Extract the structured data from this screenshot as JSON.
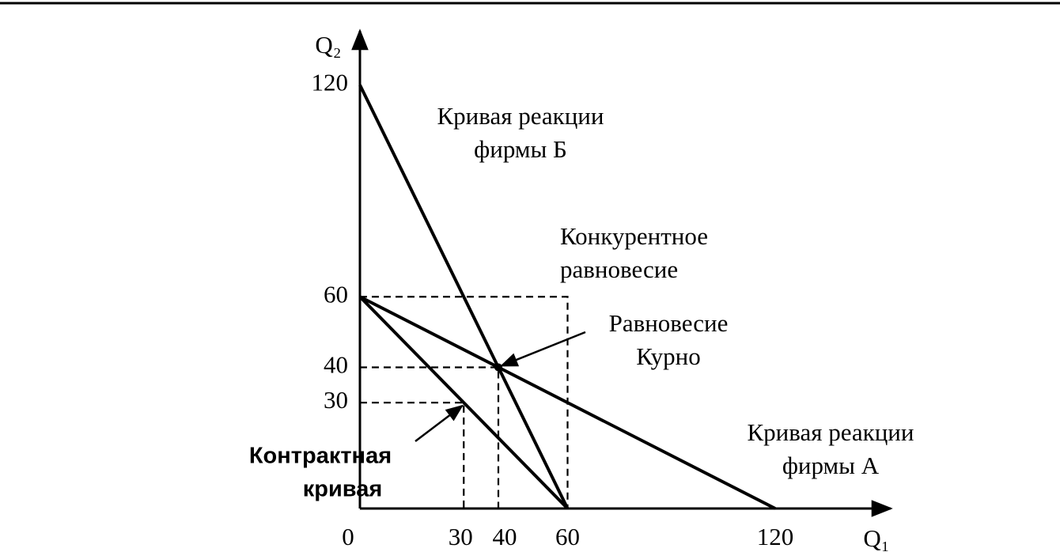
{
  "chart_data": {
    "type": "line",
    "xlabel": "Q₁",
    "ylabel": "Q₂",
    "xlim": [
      0,
      152
    ],
    "ylim": [
      0,
      134
    ],
    "xticks": [
      0,
      30,
      40,
      60,
      120
    ],
    "yticks": [
      30,
      40,
      60,
      120
    ],
    "series": [
      {
        "x": [
          0,
          60
        ],
        "values": [
          120,
          0
        ],
        "color": "#000000",
        "style": "solid"
      },
      {
        "x": [
          0,
          120
        ],
        "values": [
          60,
          0
        ],
        "color": "#000000",
        "style": "solid"
      },
      {
        "x": [
          0,
          60
        ],
        "values": [
          60,
          0
        ],
        "color": "#000000",
        "style": "solid"
      },
      {
        "x": [
          0,
          60,
          60
        ],
        "values": [
          60,
          60,
          0
        ],
        "color": "#000000",
        "style": "dashed"
      },
      {
        "x": [
          0,
          40,
          40
        ],
        "values": [
          40,
          40,
          0
        ],
        "color": "#000000",
        "style": "dashed"
      },
      {
        "x": [
          0,
          30,
          30
        ],
        "values": [
          30,
          30,
          0
        ],
        "color": "#000000",
        "style": "dashed"
      }
    ],
    "annotations": [
      {
        "lines": [
          "Кривая реакции",
          "фирмы Б"
        ]
      },
      {
        "lines": [
          "Конкурентное",
          "равновесие"
        ]
      },
      {
        "lines": [
          "Равновесие",
          "Курно"
        ]
      },
      {
        "lines": [
          "Кривая реакции",
          "фирмы А"
        ]
      },
      {
        "lines": [
          "Контрактная",
          "кривая"
        ]
      }
    ]
  }
}
